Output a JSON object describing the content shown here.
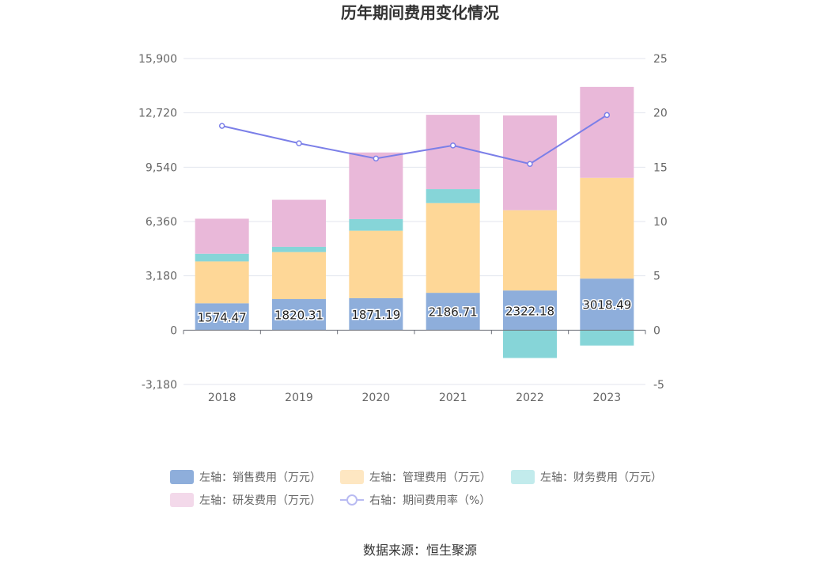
{
  "chart_data": {
    "type": "bar",
    "title": "历年期间费用变化情况",
    "categories": [
      "2018",
      "2019",
      "2020",
      "2021",
      "2022",
      "2023"
    ],
    "left_axis": {
      "min": -3180,
      "max": 15900,
      "ticks": [
        "-3,180",
        "0",
        "3,180",
        "6,360",
        "9,540",
        "12,720",
        "15,900"
      ],
      "tick_values": [
        -3180,
        0,
        3180,
        6360,
        9540,
        12720,
        15900
      ]
    },
    "right_axis": {
      "min": -5,
      "max": 25,
      "ticks": [
        "-5",
        "0",
        "5",
        "10",
        "15",
        "20",
        "25"
      ],
      "tick_values": [
        -5,
        0,
        5,
        10,
        15,
        20,
        25
      ]
    },
    "series": [
      {
        "name": "左轴：销售费用（万元）",
        "kind": "bar",
        "color": "#8eaedb",
        "values": [
          1574.47,
          1820.31,
          1871.19,
          2186.71,
          2322.18,
          3018.49
        ],
        "labels": [
          "1574.47",
          "1820.31",
          "1871.19",
          "2186.71",
          "2322.18",
          "3018.49"
        ]
      },
      {
        "name": "左轴：管理费用（万元）",
        "kind": "bar",
        "color": "#fed797",
        "values": [
          2450,
          2750,
          3950,
          5250,
          4700,
          5900
        ]
      },
      {
        "name": "左轴：财务费用（万元）",
        "kind": "bar",
        "color": "#86d5d8",
        "values": [
          450,
          310,
          680,
          820,
          -1630,
          -900
        ]
      },
      {
        "name": "左轴：研发费用（万元）",
        "kind": "bar",
        "color": "#e9b8d9",
        "values": [
          2050,
          2750,
          3900,
          4350,
          5550,
          5320
        ]
      },
      {
        "name": "右轴：期间费用率（%）",
        "kind": "line",
        "color": "#7b7fe8",
        "values": [
          18.8,
          17.2,
          15.8,
          17.0,
          15.3,
          19.8
        ]
      }
    ],
    "grid": true,
    "legend": "bottom"
  },
  "source": "数据来源：恒生聚源"
}
